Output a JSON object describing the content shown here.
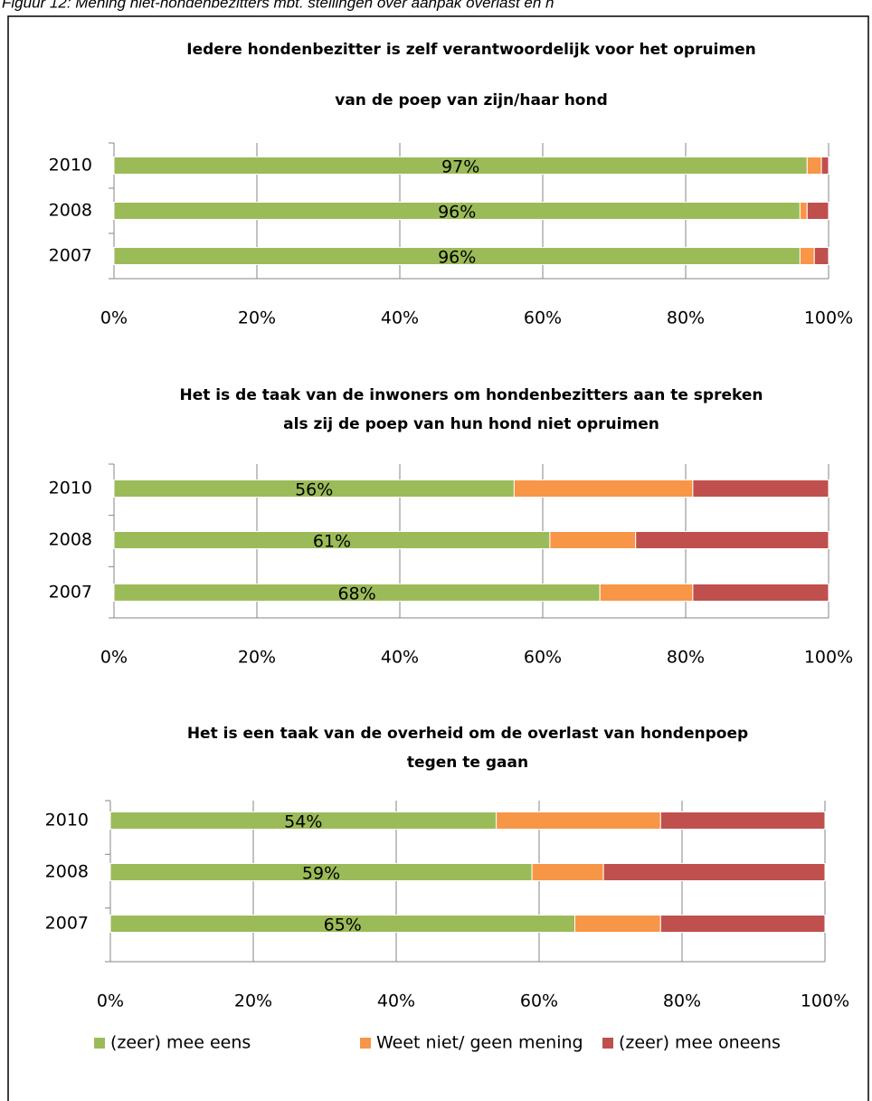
{
  "caption": "Figuur 12: Mening niet-hondenbezitters mbt. stellingen over aanpak overlast en h",
  "chart_data": [
    {
      "type": "bar",
      "orientation": "horizontal",
      "stacked": true,
      "title": [
        "Iedere hondenbezitter is zelf verantwoordelijk voor het opruimen",
        "van de poep van zijn/haar hond"
      ],
      "categories": [
        "2010",
        "2008",
        "2007"
      ],
      "series": [
        {
          "color": "#9bbb59",
          "values": [
            97,
            96,
            96
          ],
          "value_labels": [
            "97%",
            "96%",
            "96%"
          ]
        },
        {
          "color": "#f79646",
          "values": [
            2,
            1,
            2
          ]
        },
        {
          "color": "#c0504d",
          "values": [
            1,
            3,
            2
          ]
        }
      ],
      "xlim": [
        0,
        100
      ],
      "xticks": [
        {
          "value": 0,
          "label": "0%"
        },
        {
          "value": 20,
          "label": "20%"
        },
        {
          "value": 40,
          "label": "40%"
        },
        {
          "value": 60,
          "label": "60%"
        },
        {
          "value": 80,
          "label": "80%"
        },
        {
          "value": 100,
          "label": "100%"
        }
      ],
      "grid": true
    },
    {
      "type": "bar",
      "orientation": "horizontal",
      "stacked": true,
      "title": [
        "Het is de taak van de inwoners om hondenbezitters aan te spreken",
        "als zij de poep van hun hond niet opruimen"
      ],
      "categories": [
        "2010",
        "2008",
        "2007"
      ],
      "series": [
        {
          "color": "#9bbb59",
          "values": [
            56,
            61,
            68
          ],
          "value_labels": [
            "56%",
            "61%",
            "68%"
          ]
        },
        {
          "color": "#f79646",
          "values": [
            25,
            12,
            13
          ]
        },
        {
          "color": "#c0504d",
          "values": [
            19,
            27,
            19
          ]
        }
      ],
      "xlim": [
        0,
        100
      ],
      "xticks": [
        {
          "value": 0,
          "label": "0%"
        },
        {
          "value": 20,
          "label": "20%"
        },
        {
          "value": 40,
          "label": "40%"
        },
        {
          "value": 60,
          "label": "60%"
        },
        {
          "value": 80,
          "label": "80%"
        },
        {
          "value": 100,
          "label": "100%"
        }
      ],
      "grid": true
    },
    {
      "type": "bar",
      "orientation": "horizontal",
      "stacked": true,
      "title": [
        "Het is een taak van de overheid om de overlast van hondenpoep",
        "tegen te gaan"
      ],
      "categories": [
        "2010",
        "2008",
        "2007"
      ],
      "series": [
        {
          "name": "(zeer) mee eens",
          "color": "#9bbb59",
          "values": [
            54,
            59,
            65
          ],
          "value_labels": [
            "54%",
            "59%",
            "65%"
          ]
        },
        {
          "name": "Weet niet/ geen mening",
          "color": "#f79646",
          "values": [
            23,
            10,
            12
          ]
        },
        {
          "name": "(zeer) mee oneens",
          "color": "#c0504d",
          "values": [
            23,
            31,
            23
          ]
        }
      ],
      "xlim": [
        0,
        100
      ],
      "xticks": [
        {
          "value": 0,
          "label": "0%"
        },
        {
          "value": 20,
          "label": "20%"
        },
        {
          "value": 40,
          "label": "40%"
        },
        {
          "value": 60,
          "label": "60%"
        },
        {
          "value": 80,
          "label": "80%"
        },
        {
          "value": 100,
          "label": "100%"
        }
      ],
      "grid": true,
      "legend": "bottom"
    }
  ]
}
